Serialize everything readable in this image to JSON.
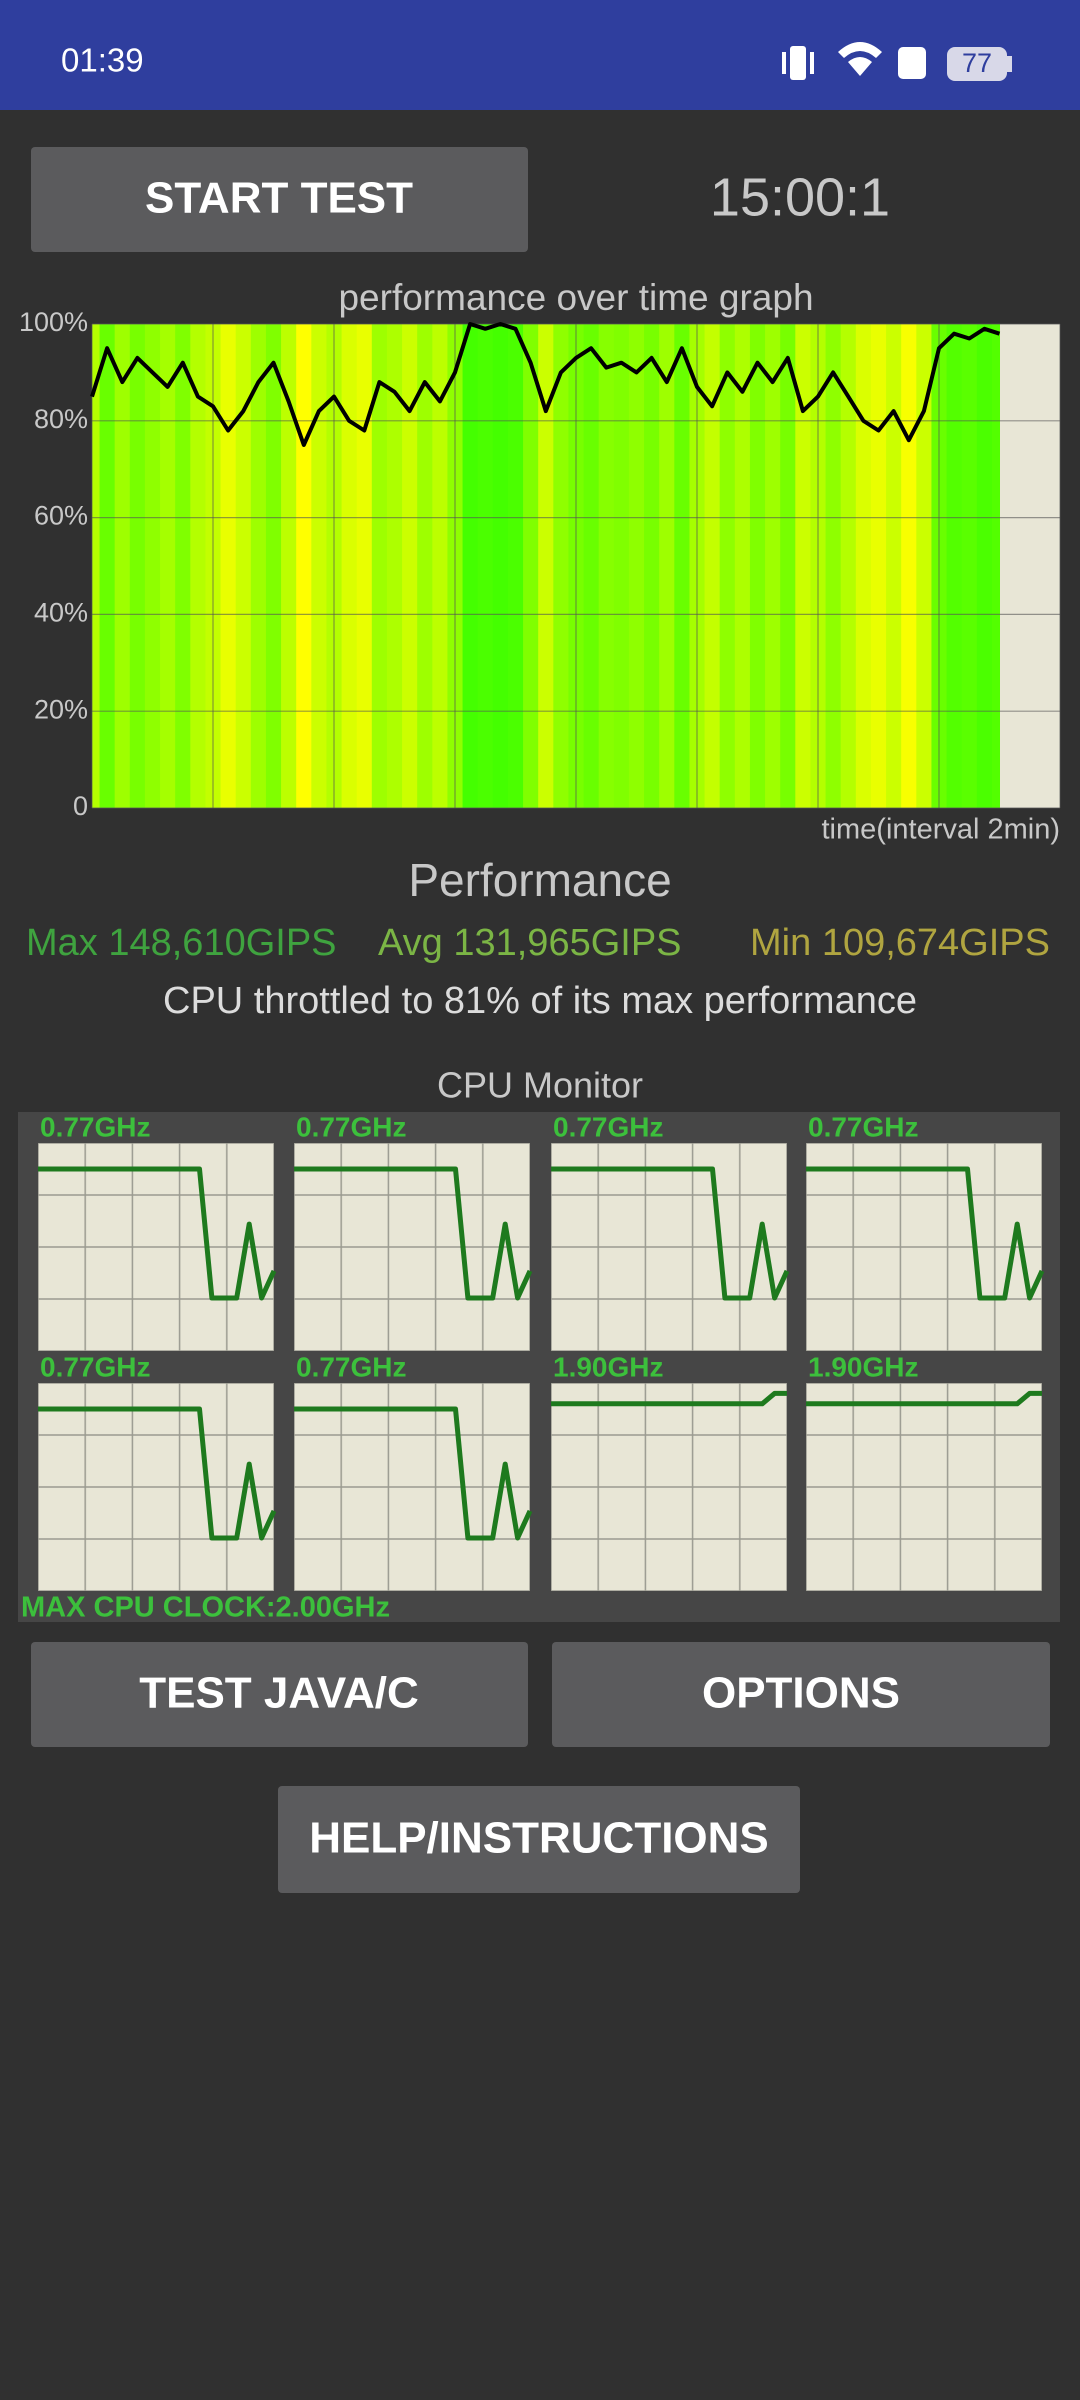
{
  "status_bar": {
    "time": "01:39",
    "battery": "77"
  },
  "buttons": {
    "start": "START TEST",
    "test_java": "TEST JAVA/C",
    "options": "OPTIONS",
    "help": "HELP/INSTRUCTIONS"
  },
  "timer": "15:00:1",
  "chart_data": [
    {
      "type": "line",
      "title": "performance over time graph",
      "x_label": "time(interval 2min)",
      "x": [
        0,
        0.25,
        0.5,
        0.75,
        1,
        1.25,
        1.5,
        1.75,
        2,
        2.25,
        2.5,
        2.75,
        3,
        3.25,
        3.5,
        3.75,
        4,
        4.25,
        4.5,
        4.75,
        5,
        5.25,
        5.5,
        5.75,
        6,
        6.25,
        6.5,
        6.75,
        7,
        7.25,
        7.5,
        7.75,
        8,
        8.25,
        8.5,
        8.75,
        9,
        9.25,
        9.5,
        9.75,
        10,
        10.25,
        10.5,
        10.75,
        11,
        11.25,
        11.5,
        11.75,
        12,
        12.25,
        12.5,
        12.75,
        13,
        13.25,
        13.5,
        13.75,
        14,
        14.25,
        14.5,
        14.75,
        15
      ],
      "values": [
        85,
        95,
        88,
        93,
        90,
        87,
        92,
        85,
        83,
        78,
        82,
        88,
        92,
        84,
        75,
        82,
        85,
        80,
        78,
        88,
        86,
        82,
        88,
        84,
        90,
        100,
        99,
        100,
        99,
        92,
        82,
        90,
        93,
        95,
        91,
        92,
        90,
        93,
        88,
        95,
        87,
        83,
        90,
        86,
        92,
        88,
        93,
        82,
        85,
        90,
        85,
        80,
        78,
        82,
        76,
        82,
        95,
        98,
        97,
        99,
        98
      ],
      "color": "#000000",
      "xlim": [
        0,
        16
      ],
      "xticks": [
        0,
        2,
        4,
        6,
        8,
        10,
        12,
        14,
        16
      ],
      "ylim": [
        0,
        100
      ],
      "yticks": [
        0,
        {
          "value": 20,
          "label": "20%"
        },
        {
          "value": 40,
          "label": "40%"
        },
        {
          "value": 60,
          "label": "60%"
        },
        {
          "value": 80,
          "label": "80%"
        },
        {
          "value": 100,
          "label": "100%"
        }
      ],
      "grid": true
    },
    {
      "type": "line",
      "title": "CPU Monitor",
      "footer": "MAX CPU CLOCK:2.00GHz",
      "ylim": [
        0,
        2
      ],
      "series": [
        {
          "name": "0.77GHz",
          "color": "#1e7a1e",
          "values": [
            1.75,
            1.75,
            1.75,
            1.75,
            1.75,
            1.75,
            1.75,
            1.75,
            1.75,
            1.75,
            1.75,
            1.75,
            1.75,
            1.75,
            0.51,
            0.51,
            0.51,
            1.22,
            0.51,
            0.77
          ]
        },
        {
          "name": "0.77GHz",
          "color": "#1e7a1e",
          "values": [
            1.75,
            1.75,
            1.75,
            1.75,
            1.75,
            1.75,
            1.75,
            1.75,
            1.75,
            1.75,
            1.75,
            1.75,
            1.75,
            1.75,
            0.51,
            0.51,
            0.51,
            1.22,
            0.51,
            0.77
          ]
        },
        {
          "name": "0.77GHz",
          "color": "#1e7a1e",
          "values": [
            1.75,
            1.75,
            1.75,
            1.75,
            1.75,
            1.75,
            1.75,
            1.75,
            1.75,
            1.75,
            1.75,
            1.75,
            1.75,
            1.75,
            0.51,
            0.51,
            0.51,
            1.22,
            0.51,
            0.77
          ]
        },
        {
          "name": "0.77GHz",
          "color": "#1e7a1e",
          "values": [
            1.75,
            1.75,
            1.75,
            1.75,
            1.75,
            1.75,
            1.75,
            1.75,
            1.75,
            1.75,
            1.75,
            1.75,
            1.75,
            1.75,
            0.51,
            0.51,
            0.51,
            1.22,
            0.51,
            0.77
          ]
        },
        {
          "name": "0.77GHz",
          "color": "#1e7a1e",
          "values": [
            1.75,
            1.75,
            1.75,
            1.75,
            1.75,
            1.75,
            1.75,
            1.75,
            1.75,
            1.75,
            1.75,
            1.75,
            1.75,
            1.75,
            0.51,
            0.51,
            0.51,
            1.22,
            0.51,
            0.77
          ]
        },
        {
          "name": "0.77GHz",
          "color": "#1e7a1e",
          "values": [
            1.75,
            1.75,
            1.75,
            1.75,
            1.75,
            1.75,
            1.75,
            1.75,
            1.75,
            1.75,
            1.75,
            1.75,
            1.75,
            1.75,
            0.51,
            0.51,
            0.51,
            1.22,
            0.51,
            0.77
          ]
        },
        {
          "name": "1.90GHz",
          "color": "#1e7a1e",
          "values": [
            1.8,
            1.8,
            1.8,
            1.8,
            1.8,
            1.8,
            1.8,
            1.8,
            1.8,
            1.8,
            1.8,
            1.8,
            1.8,
            1.8,
            1.8,
            1.8,
            1.8,
            1.8,
            1.9,
            1.9
          ]
        },
        {
          "name": "1.90GHz",
          "color": "#1e7a1e",
          "values": [
            1.8,
            1.8,
            1.8,
            1.8,
            1.8,
            1.8,
            1.8,
            1.8,
            1.8,
            1.8,
            1.8,
            1.8,
            1.8,
            1.8,
            1.8,
            1.8,
            1.8,
            1.8,
            1.9,
            1.9
          ]
        }
      ]
    }
  ],
  "performance": {
    "title": "Performance",
    "max": "Max 148,610GIPS",
    "avg": "Avg 131,965GIPS",
    "min": "Min 109,674GIPS",
    "throttle": "CPU throttled to 81% of its max performance"
  }
}
